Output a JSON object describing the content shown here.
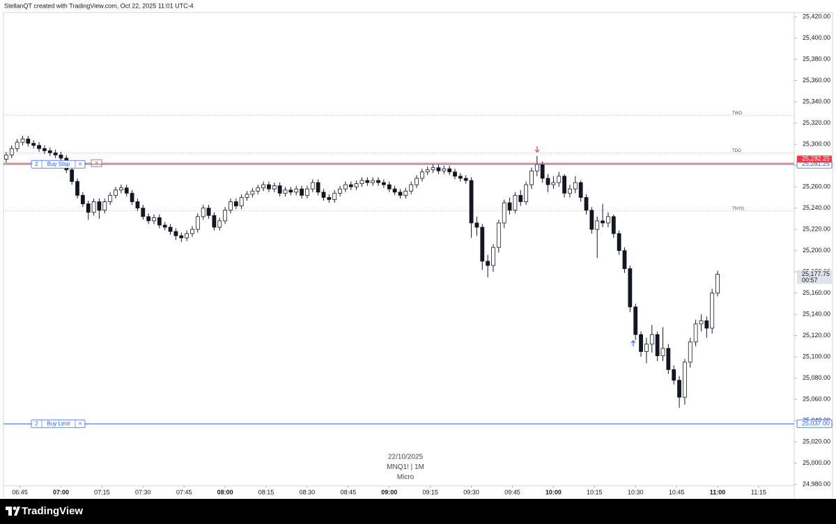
{
  "header": {
    "text": "StellanQT created with TradingView.com, Oct 22, 2025 11:01 UTC-4"
  },
  "footer": {
    "brand": "TradingView"
  },
  "chart_data": {
    "type": "candlestick",
    "watermark": [
      "22/10/2025",
      "MNQ1! | 1M",
      "Micro"
    ],
    "up_color": "#ffffff",
    "down_color": "#131722",
    "wick_color": "#131722",
    "xlim": [
      399,
      688
    ],
    "ylim": [
      24967,
      25424
    ],
    "xticks": [
      {
        "value": 405,
        "label": "06:45"
      },
      {
        "value": 420,
        "label": "07:00"
      },
      {
        "value": 435,
        "label": "07:15"
      },
      {
        "value": 450,
        "label": "07:30"
      },
      {
        "value": 465,
        "label": "07:45"
      },
      {
        "value": 480,
        "label": "08:00"
      },
      {
        "value": 495,
        "label": "08:15"
      },
      {
        "value": 510,
        "label": "08:30"
      },
      {
        "value": 525,
        "label": "08:45"
      },
      {
        "value": 540,
        "label": "09:00"
      },
      {
        "value": 555,
        "label": "09:15"
      },
      {
        "value": 570,
        "label": "09:30"
      },
      {
        "value": 585,
        "label": "09:45"
      },
      {
        "value": 600,
        "label": "10:00"
      },
      {
        "value": 615,
        "label": "10:15"
      },
      {
        "value": 630,
        "label": "10:30"
      },
      {
        "value": 645,
        "label": "10:45"
      },
      {
        "value": 660,
        "label": "11:00"
      },
      {
        "value": 675,
        "label": "11:15"
      }
    ],
    "yticks": [
      {
        "value": 25420,
        "label": "25,420.00"
      },
      {
        "value": 25400,
        "label": "25,400.00"
      },
      {
        "value": 25380,
        "label": "25,380.00"
      },
      {
        "value": 25360,
        "label": "25,360.00"
      },
      {
        "value": 25340,
        "label": "25,340.00"
      },
      {
        "value": 25320,
        "label": "25,320.00"
      },
      {
        "value": 25300,
        "label": "25,300.00"
      },
      {
        "value": 25280,
        "label": "25,280.00"
      },
      {
        "value": 25260,
        "label": "25,260.00"
      },
      {
        "value": 25240,
        "label": "25,240.00"
      },
      {
        "value": 25220,
        "label": "25,220.00"
      },
      {
        "value": 25200,
        "label": "25,200.00"
      },
      {
        "value": 25180,
        "label": "25,180.00"
      },
      {
        "value": 25160,
        "label": "25,160.00"
      },
      {
        "value": 25140,
        "label": "25,140.00"
      },
      {
        "value": 25120,
        "label": "25,120.00"
      },
      {
        "value": 25100,
        "label": "25,100.00"
      },
      {
        "value": 25080,
        "label": "25,080.00"
      },
      {
        "value": 25060,
        "label": "25,060.00"
      },
      {
        "value": 25040,
        "label": "25,040.00"
      },
      {
        "value": 25020,
        "label": "25,020.00"
      },
      {
        "value": 25000,
        "label": "25,000.00"
      },
      {
        "value": 24980,
        "label": "24,980.00"
      }
    ],
    "levels": [
      {
        "label": "TWO",
        "value": 25327.5
      },
      {
        "label": "TDO",
        "value": 25292
      },
      {
        "label": "TNYO",
        "value": 25237.5
      }
    ],
    "orders": [
      {
        "quantity": 2,
        "type": "Buy Stop",
        "close": "×",
        "price": 25281.25,
        "price_label": "25,281.25",
        "color": "#2962ff"
      },
      {
        "quantity": 2,
        "type": "Buy Limit",
        "close": "×",
        "price": 25037,
        "price_label": "25,037.00",
        "color": "#2962ff"
      }
    ],
    "alert_line": {
      "value": 25282.25,
      "label": "25,282.25",
      "close": "×",
      "color": "#f23645"
    },
    "last_price": {
      "value": 25177.75,
      "label": "25,177.75",
      "countdown": "00:57"
    },
    "x": [
      400,
      402,
      404,
      406,
      408,
      410,
      412,
      414,
      416,
      418,
      420,
      422,
      424,
      426,
      428,
      430,
      432,
      434,
      436,
      438,
      440,
      442,
      444,
      446,
      448,
      450,
      452,
      454,
      456,
      458,
      460,
      462,
      464,
      466,
      468,
      470,
      472,
      474,
      476,
      478,
      480,
      482,
      484,
      486,
      488,
      490,
      492,
      494,
      496,
      498,
      500,
      502,
      504,
      506,
      508,
      510,
      512,
      514,
      516,
      518,
      520,
      522,
      524,
      526,
      528,
      530,
      532,
      534,
      536,
      538,
      540,
      542,
      544,
      546,
      548,
      550,
      552,
      554,
      556,
      558,
      560,
      562,
      564,
      566,
      568,
      570,
      572,
      574,
      576,
      578,
      580,
      582,
      584,
      586,
      588,
      590,
      592,
      594,
      596,
      598,
      600,
      602,
      604,
      606,
      608,
      610,
      612,
      614,
      616,
      618,
      620,
      622,
      624,
      626,
      628,
      630,
      632,
      634,
      636,
      638,
      640,
      642,
      644,
      646,
      648,
      650,
      652,
      654,
      656,
      658,
      660
    ],
    "open": [
      25286,
      25290,
      25296,
      25302,
      25305,
      25301,
      25299,
      25296,
      25294,
      25292,
      25290,
      25287,
      25276,
      25265,
      25252,
      25244,
      25236,
      25246,
      25238,
      25246,
      25252,
      25257,
      25259,
      25254,
      25246,
      25240,
      25232,
      25228,
      25231,
      25224,
      25222,
      25218,
      25214,
      25212,
      25216,
      25220,
      25232,
      25240,
      25233,
      25222,
      25228,
      25238,
      25246,
      25242,
      25250,
      25253,
      25256,
      25259,
      25262,
      25258,
      25261,
      25254,
      25257,
      25255,
      25258,
      25252,
      25258,
      25264,
      25255,
      25250,
      25248,
      25254,
      25258,
      25262,
      25260,
      25263,
      25266,
      25264,
      25266,
      25264,
      25262,
      25258,
      25255,
      25252,
      25256,
      25262,
      25268,
      25274,
      25276,
      25278,
      25275,
      25277,
      25274,
      25270,
      25268,
      25266,
      25226,
      25222,
      25190,
      25186,
      25203,
      25226,
      25245,
      25238,
      25252,
      25246,
      25262,
      25275,
      25281,
      25268,
      25262,
      25264,
      25270,
      25254,
      25258,
      25264,
      25250,
      25238,
      25220,
      25228,
      25226,
      25232,
      25216,
      25200,
      25183,
      25147,
      25121,
      25105,
      25112,
      25121,
      25101,
      25108,
      25088,
      25078,
      25062,
      25095,
      25114,
      25131,
      25134,
      25127,
      25160
    ],
    "high": [
      25293,
      25299,
      25305,
      25308,
      25308,
      25304,
      25302,
      25299,
      25297,
      25295,
      25293,
      25290,
      25279,
      25268,
      25255,
      25247,
      25249,
      25249,
      25249,
      25255,
      25260,
      25262,
      25262,
      25257,
      25249,
      25243,
      25235,
      25234,
      25234,
      25227,
      25225,
      25221,
      25217,
      25219,
      25223,
      25235,
      25243,
      25243,
      25236,
      25231,
      25241,
      25249,
      25249,
      25253,
      25256,
      25259,
      25262,
      25265,
      25265,
      25264,
      25264,
      25260,
      25260,
      25261,
      25261,
      25261,
      25267,
      25267,
      25258,
      25253,
      25257,
      25261,
      25265,
      25265,
      25266,
      25269,
      25269,
      25269,
      25269,
      25267,
      25265,
      25261,
      25258,
      25259,
      25265,
      25271,
      25277,
      25279,
      25281,
      25281,
      25280,
      25280,
      25277,
      25273,
      25271,
      25269,
      25232,
      25225,
      25196,
      25206,
      25229,
      25248,
      25250,
      25255,
      25257,
      25265,
      25278,
      25289,
      25284,
      25272,
      25270,
      25274,
      25272,
      25262,
      25270,
      25266,
      25253,
      25241,
      25232,
      25244,
      25236,
      25234,
      25219,
      25203,
      25186,
      25150,
      25124,
      25118,
      25130,
      25124,
      25128,
      25112,
      25092,
      25082,
      25098,
      25118,
      25135,
      25140,
      25138,
      25164,
      25181
    ],
    "low": [
      25283,
      25287,
      25293,
      25299,
      25298,
      25296,
      25293,
      25291,
      25289,
      25287,
      25284,
      25273,
      25262,
      25249,
      25241,
      25229,
      25233,
      25230,
      25235,
      25243,
      25249,
      25254,
      25251,
      25243,
      25237,
      25229,
      25225,
      25225,
      25221,
      25219,
      25215,
      25210,
      25208,
      25209,
      25213,
      25217,
      25229,
      25230,
      25219,
      25219,
      25225,
      25235,
      25239,
      25239,
      25247,
      25250,
      25253,
      25256,
      25255,
      25255,
      25251,
      25251,
      25252,
      25252,
      25249,
      25249,
      25255,
      25252,
      25247,
      25245,
      25245,
      25251,
      25255,
      25257,
      25257,
      25260,
      25261,
      25261,
      25261,
      25259,
      25255,
      25252,
      25249,
      25249,
      25253,
      25259,
      25265,
      25271,
      25273,
      25272,
      25272,
      25271,
      25267,
      25265,
      25263,
      25212,
      25214,
      25182,
      25175,
      25180,
      25198,
      25221,
      25234,
      25235,
      25242,
      25243,
      25258,
      25270,
      25264,
      25255,
      25258,
      25260,
      25250,
      25250,
      25254,
      25246,
      25234,
      25216,
      25193,
      25222,
      25222,
      25212,
      25196,
      25179,
      25142,
      25116,
      25100,
      25094,
      25104,
      25096,
      25096,
      25084,
      25074,
      25052,
      25055,
      25090,
      25110,
      25124,
      25118,
      25122,
      25157
    ],
    "close": [
      25290,
      25296,
      25302,
      25305,
      25301,
      25299,
      25296,
      25294,
      25292,
      25290,
      25287,
      25276,
      25265,
      25252,
      25244,
      25236,
      25246,
      25238,
      25246,
      25252,
      25257,
      25259,
      25254,
      25246,
      25240,
      25232,
      25228,
      25231,
      25224,
      25222,
      25218,
      25214,
      25212,
      25216,
      25220,
      25232,
      25240,
      25233,
      25222,
      25228,
      25238,
      25246,
      25242,
      25250,
      25253,
      25256,
      25259,
      25262,
      25258,
      25261,
      25254,
      25257,
      25255,
      25258,
      25252,
      25258,
      25264,
      25255,
      25250,
      25248,
      25254,
      25258,
      25262,
      25260,
      25263,
      25266,
      25264,
      25266,
      25264,
      25262,
      25258,
      25255,
      25252,
      25256,
      25262,
      25268,
      25274,
      25276,
      25278,
      25275,
      25277,
      25274,
      25270,
      25268,
      25266,
      25226,
      25222,
      25190,
      25186,
      25203,
      25226,
      25245,
      25238,
      25252,
      25246,
      25262,
      25275,
      25281,
      25268,
      25262,
      25264,
      25270,
      25254,
      25258,
      25264,
      25250,
      25238,
      25220,
      25228,
      25226,
      25232,
      25216,
      25200,
      25183,
      25147,
      25121,
      25105,
      25112,
      25121,
      25101,
      25108,
      25088,
      25078,
      25062,
      25095,
      25114,
      25131,
      25134,
      25127,
      25160,
      25177.75
    ]
  }
}
